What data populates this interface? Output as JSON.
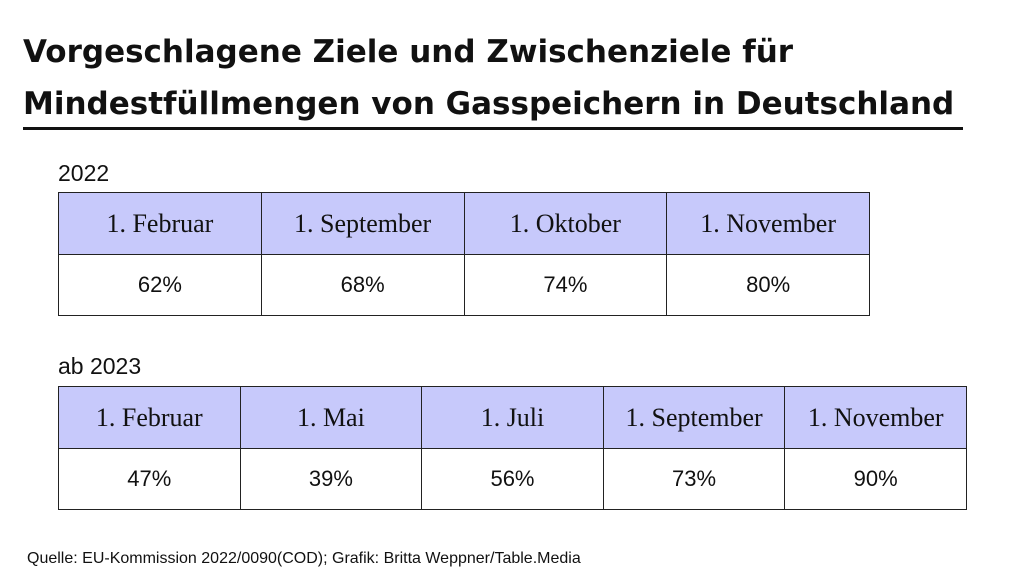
{
  "title": {
    "line1": "Vorgeschlagene Ziele und Zwischenziele für",
    "line2": "Mindestfüllmengen von Gasspeichern in Deutschland"
  },
  "colors": {
    "header_fill": "#c7c9fb",
    "border": "#222222",
    "text": "#111111"
  },
  "chart_data": [
    {
      "type": "table",
      "label": "2022",
      "columns": [
        "1. Februar",
        "1. September",
        "1. Oktober",
        "1. November"
      ],
      "values": [
        "62%",
        "68%",
        "74%",
        "80%"
      ]
    },
    {
      "type": "table",
      "label": "ab 2023",
      "columns": [
        "1. Februar",
        "1. Mai",
        "1. Juli",
        "1. September",
        "1. November"
      ],
      "values": [
        "47%",
        "39%",
        "56%",
        "73%",
        "90%"
      ]
    }
  ],
  "source": "Quelle: EU-Kommission 2022/0090(COD); Grafik: Britta Weppner/Table.Media"
}
